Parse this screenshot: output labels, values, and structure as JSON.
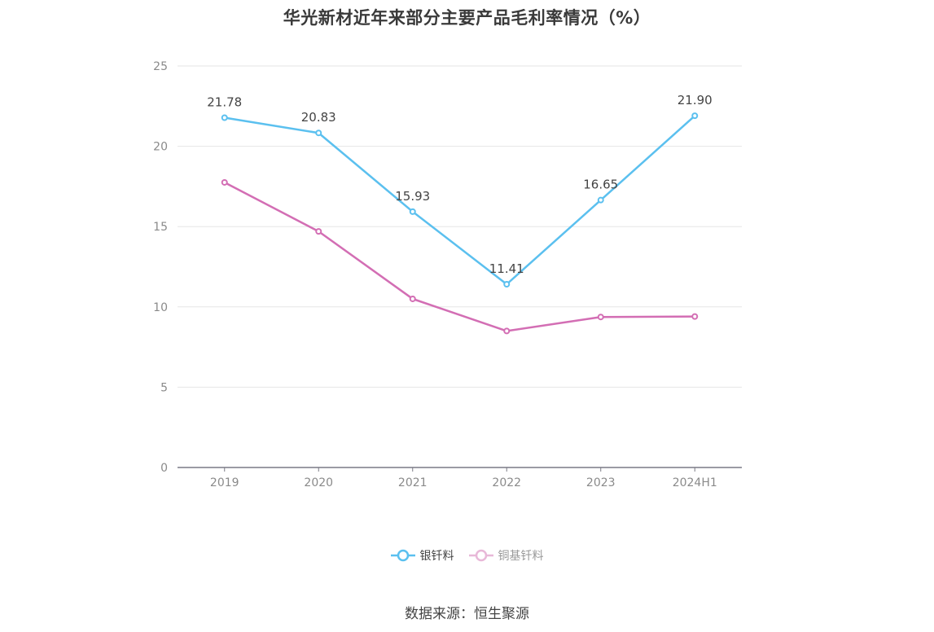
{
  "chart_data": {
    "type": "line",
    "title": "华光新材近年来部分主要产品毛利率情况（%）",
    "categories": [
      "2019",
      "2020",
      "2021",
      "2022",
      "2023",
      "2024H1"
    ],
    "ylim": [
      0,
      25
    ],
    "yticks": [
      0,
      5,
      10,
      15,
      20,
      25
    ],
    "grid": true,
    "legend_position": "bottom",
    "series": [
      {
        "name": "银钎料",
        "values": [
          21.78,
          20.83,
          15.93,
          11.41,
          16.65,
          21.9
        ],
        "labels": [
          "21.78",
          "20.83",
          "15.93",
          "11.41",
          "16.65",
          "21.90"
        ],
        "color": "#5bc0ef"
      },
      {
        "name": "铜基钎料",
        "values": [
          17.75,
          14.7,
          10.5,
          8.5,
          9.37,
          9.4
        ],
        "color": "#d36eb4"
      }
    ]
  },
  "legend_faded_color": "#e8b8d8",
  "source": "数据来源：恒生聚源"
}
